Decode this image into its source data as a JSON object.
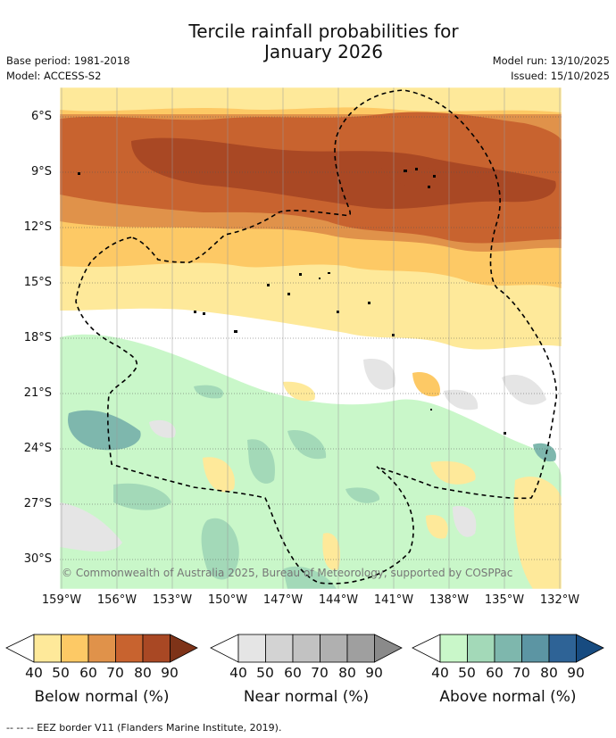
{
  "title": {
    "line1": "Tercile rainfall probabilities for",
    "line2": "January 2026"
  },
  "meta_left": {
    "base_period": "Base period: 1981-2018",
    "model": "Model: ACCESS-S2"
  },
  "meta_right": {
    "model_run": "Model run: 13/10/2025",
    "issued": "Issued: 15/10/2025"
  },
  "map": {
    "lat_labels": [
      "6°S",
      "9°S",
      "12°S",
      "15°S",
      "18°S",
      "21°S",
      "24°S",
      "27°S",
      "30°S"
    ],
    "lon_labels": [
      "159°W",
      "156°W",
      "153°W",
      "150°W",
      "147°W",
      "144°W",
      "141°W",
      "138°W",
      "135°W",
      "132°W"
    ],
    "credit": "© Commonwealth of Australia 2025, Bureau of Meteorology, supported by COSPPac"
  },
  "colorbars": [
    {
      "label": "Below normal (%)",
      "ticks": [
        "40",
        "50",
        "60",
        "70",
        "80",
        "90"
      ],
      "colors": [
        "#ffffff",
        "#fee99a",
        "#fdc965",
        "#e0924a",
        "#c8632f",
        "#a94824",
        "#7e3318"
      ]
    },
    {
      "label": "Near normal (%)",
      "ticks": [
        "40",
        "50",
        "60",
        "70",
        "80",
        "90"
      ],
      "colors": [
        "#ffffff",
        "#e5e5e5",
        "#d3d3d3",
        "#c2c2c2",
        "#b0b0b0",
        "#9f9f9f",
        "#8a8a8a"
      ]
    },
    {
      "label": "Above normal (%)",
      "ticks": [
        "40",
        "50",
        "60",
        "70",
        "80",
        "90"
      ],
      "colors": [
        "#ffffff",
        "#c9f7c9",
        "#a3d9b8",
        "#7eb7ad",
        "#5c95a3",
        "#2e6396",
        "#174b80"
      ]
    }
  ],
  "footer": {
    "eez_legend": "--  --  -- EEZ border V11 (Flanders Marine Institute, 2019)."
  }
}
